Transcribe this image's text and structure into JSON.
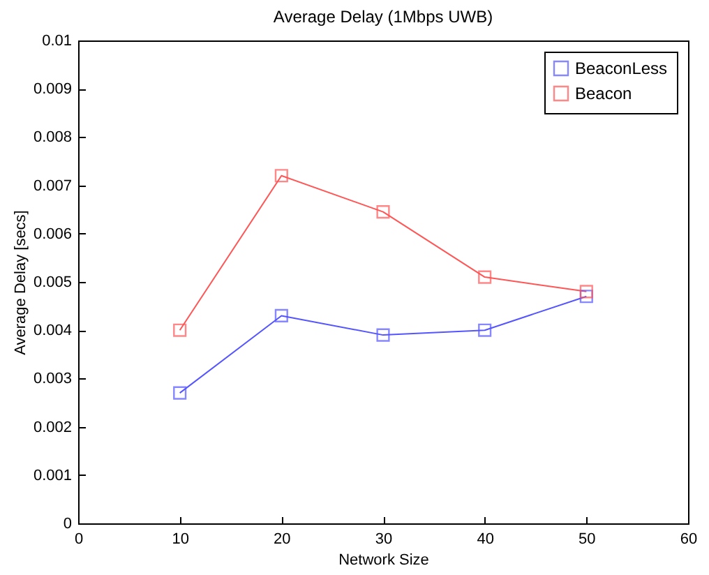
{
  "chart_data": {
    "type": "line",
    "title": "Average Delay (1Mbps UWB)",
    "xlabel": "Network Size",
    "ylabel": "Average Delay [secs]",
    "x": [
      10,
      20,
      30,
      40,
      50
    ],
    "series": [
      {
        "name": "BeaconLess",
        "color": "#5555ff",
        "values": [
          0.0027,
          0.0043,
          0.0039,
          0.004,
          0.0047
        ]
      },
      {
        "name": "Beacon",
        "color": "#ff5555",
        "values": [
          0.004,
          0.0072,
          0.00645,
          0.0051,
          0.0048
        ]
      }
    ],
    "xlim": [
      0,
      60
    ],
    "xticks": [
      0,
      10,
      20,
      30,
      40,
      50,
      60
    ],
    "ylim": [
      0,
      0.01
    ],
    "yticks": [
      0,
      0.001,
      0.002,
      0.003,
      0.004,
      0.005,
      0.006,
      0.007,
      0.008,
      0.009,
      0.01
    ],
    "grid": false,
    "legend": "top right",
    "marker": "square",
    "line_style": "solid"
  }
}
